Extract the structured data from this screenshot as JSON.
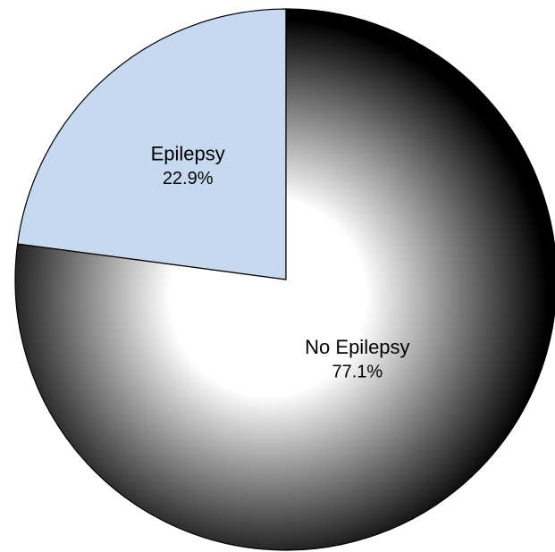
{
  "chart_data": {
    "type": "pie",
    "categories": [
      "Epilepsy",
      "No Epilepsy"
    ],
    "values": [
      22.9,
      77.1
    ],
    "value_labels": [
      "22.9%",
      "77.1%"
    ],
    "colors": [
      "#c6d9f0",
      {
        "type": "radial",
        "stops": [
          "#ffffff",
          "#000000"
        ]
      }
    ],
    "start_angle": 90,
    "direction": "counterclockwise"
  }
}
